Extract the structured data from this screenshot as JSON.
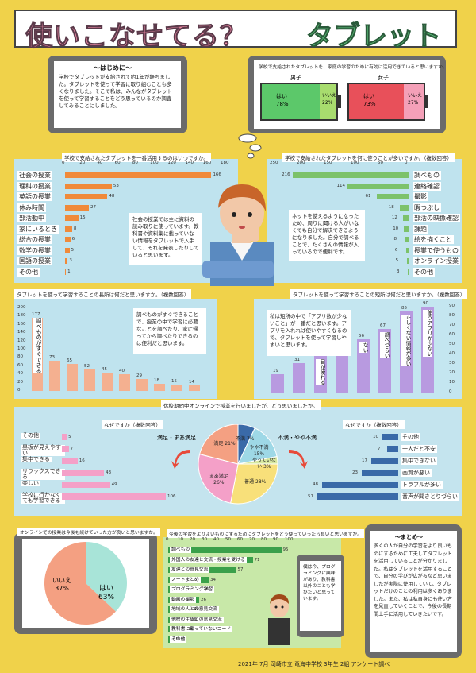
{
  "title": {
    "main": "使いこなせてる？",
    "accent": "タブレット"
  },
  "intro": {
    "heading": "～はじめに～",
    "body": "学校でタブレットが支給されて約1年が経ちました。タブレットを使って学習に取り組むことも多くなりました。そこで私は、みんながタブレットを使って学習することをどう思っているのか調査してみることにしました。"
  },
  "useful": {
    "caption": "学校で支給されたタブレットを、家庭の学習のために有効に活用できていると思いますか。",
    "male": {
      "label": "男子",
      "yes_label": "はい",
      "yes_pct": "78%",
      "no_label": "いいえ",
      "no_pct": "22%",
      "yes": 78,
      "no": 22
    },
    "female": {
      "label": "女子",
      "yes_label": "はい",
      "yes_pct": "73%",
      "no_label": "いいえ",
      "no_pct": "27%",
      "yes": 73,
      "no": 27
    }
  },
  "colors": {
    "male_yes": "#5cc86a",
    "male_no": "#a8dc6e",
    "female_yes": "#e8505a",
    "female_no": "#f4a0b8",
    "orange": "#f08a3a",
    "green": "#7cc26a",
    "purple": "#b89ae0",
    "pink": "#f4a0c8",
    "blue": "#3a6aa8",
    "teal": "#9ed8e6"
  },
  "subjects": {
    "caption": "学校で支給されたタブレットを一番活用するのはいつですか。",
    "axis": [
      "0",
      "20",
      "40",
      "60",
      "80",
      "100",
      "120",
      "140",
      "160",
      "180"
    ],
    "items": [
      {
        "label": "社会の授業",
        "value": 166
      },
      {
        "label": "理科の授業",
        "value": 53
      },
      {
        "label": "英語の授業",
        "value": 48
      },
      {
        "label": "休み時間",
        "value": 27
      },
      {
        "label": "部活動中",
        "value": 15
      },
      {
        "label": "家にいるとき",
        "value": 8
      },
      {
        "label": "総合の授業",
        "value": 6
      },
      {
        "label": "数学の授業",
        "value": 5
      },
      {
        "label": "国語の授業",
        "value": 3
      },
      {
        "label": "その他",
        "value": 1
      }
    ],
    "note": "社会の授業では主に資料の読み取りに使っています。教科書や資料集に載っていない情報をタブレットで入手して、それを発表したりしていると思います。"
  },
  "purposes": {
    "caption": "学校で支給されたタブレットを何に使うことが多いですか。（複数回答）",
    "axis": [
      "250",
      "200",
      "150",
      "100",
      "50",
      "0"
    ],
    "items": [
      {
        "label": "調べもの",
        "value": 216
      },
      {
        "label": "連絡確認",
        "value": 114
      },
      {
        "label": "撮影",
        "value": 61
      },
      {
        "label": "暇つぶし",
        "value": 18
      },
      {
        "label": "部活の映像確認",
        "value": 12
      },
      {
        "label": "課題",
        "value": 10
      },
      {
        "label": "絵を描くこと",
        "value": 8
      },
      {
        "label": "授業で使うもの",
        "value": 6
      },
      {
        "label": "オンライン授業",
        "value": 5
      },
      {
        "label": "その他",
        "value": 3
      }
    ],
    "note": "ネットを使えるようになったため、周りに聞ける人がいなくても自分で解決できるようになりました。自分で調べることで、たくさんの情報が入っているので便利です。"
  },
  "merits": {
    "caption": "タブレットを使って学習することの長所は何だと思いますか。（複数回答）",
    "axis": [
      "0",
      "20",
      "40",
      "60",
      "80",
      "100",
      "120",
      "140",
      "160",
      "180",
      "200"
    ],
    "values": [
      177,
      73,
      65,
      52,
      45,
      40,
      29,
      18,
      15,
      14
    ],
    "first_label": "調べものがすぐできる",
    "note": "調べものがすぐできることで、授業の中で学習に必要なことを調べたり、家に帰ってから調べたりできるのは便利だと思います。"
  },
  "demerits": {
    "caption": "タブレットを使って学習することの短所は何だと思いますか。（複数回答）",
    "axis": [
      "0",
      "10",
      "20",
      "30",
      "40",
      "50",
      "60",
      "70",
      "80",
      "90"
    ],
    "values": [
      19,
      31,
      38,
      42,
      56,
      67,
      85,
      90
    ],
    "labels": [
      "",
      "",
      "目が疲れる",
      "",
      "ない",
      "調べづらい",
      "正しくない情報が多い",
      "使うアプリが少ない"
    ],
    "note": "私は短所の中で「アプリ数が少ないこと」が一番だと思います。アプリを入れれば使いやすくなるので、タブレットを使って学習しやすいと思います。"
  },
  "online": {
    "caption": "休校期間中オンラインで授業を行いましたが、どう思いましたか。",
    "slices": [
      {
        "label": "不満",
        "value": 7,
        "color": "#3a6aa8"
      },
      {
        "label": "やや不満",
        "value": 15,
        "color": "#9ed8e6"
      },
      {
        "label": "やっていない",
        "value": 3,
        "color": "#d8e8a0"
      },
      {
        "label": "普通",
        "value": 28,
        "color": "#f8e07a"
      },
      {
        "label": "まあ満足",
        "value": 26,
        "color": "#f4a0c8"
      },
      {
        "label": "満足",
        "value": 21,
        "color": "#f4a082"
      }
    ],
    "slice_text": [
      "不満 7%",
      "やや不満 15%",
      "やっていない 3%",
      "普通 28%",
      "まあ満足 26%",
      "満足 21%"
    ],
    "group_left": "満足・まあ満足",
    "group_right": "不満・やや不満",
    "why_good_caption": "なぜですか（複数回答）",
    "why_good": [
      {
        "label": "その他",
        "value": 5
      },
      {
        "label": "黒板が見えやすい",
        "value": 7
      },
      {
        "label": "集中できる",
        "value": 16
      },
      {
        "label": "リラックスできる",
        "value": 43
      },
      {
        "label": "楽しい",
        "value": 49
      },
      {
        "label": "学校に行かなくても学習できる",
        "value": 106
      }
    ],
    "why_bad_caption": "なぜですか（複数回答）",
    "why_bad": [
      {
        "label": "その他",
        "value": 10
      },
      {
        "label": "一人だと不安",
        "value": 7
      },
      {
        "label": "集中できない",
        "value": 17
      },
      {
        "label": "画質が悪い",
        "value": 23
      },
      {
        "label": "トラブルが多い",
        "value": 48
      },
      {
        "label": "音声が聞きとりづらい",
        "value": 51
      }
    ]
  },
  "continue": {
    "caption": "オンラインでの授業は今後も続けていった方が良いと思いますか。",
    "yes_label": "はい",
    "yes_pct": "63%",
    "yes": 63,
    "no_label": "いいえ",
    "no_pct": "37%",
    "no": 37
  },
  "future": {
    "caption": "今後の学習をよりよいものにするためにタブレットをどう使っていったら良いと思いますか。",
    "axis": [
      "0",
      "10",
      "20",
      "30",
      "40",
      "50",
      "60",
      "70",
      "80",
      "90",
      "100"
    ],
    "items": [
      {
        "label": "調べもの",
        "value": 95
      },
      {
        "label": "外国人の友達と交流・授業を受ける",
        "value": 71
      },
      {
        "label": "友達との意見交流",
        "value": 57
      },
      {
        "label": "ノートまとめ",
        "value": 34
      },
      {
        "label": "プログラミング学習",
        "value": 28
      },
      {
        "label": "動画の撮影",
        "value": 26
      },
      {
        "label": "地域の人との意見交流",
        "value": 20
      },
      {
        "label": "他校の生徒との意見交流",
        "value": 18
      },
      {
        "label": "教科書に載っていないコード",
        "value": 15
      },
      {
        "label": "その他",
        "value": 5
      }
    ],
    "note": "僕は今、プログラミングに興味があり、教科書以外のことも学びたいと思っています。"
  },
  "summary": {
    "heading": "～まとめ～",
    "body": "多くの人が自分の学習をより良いものにするために工夫してタブレットを活用していることが分かりました。私はタブレットを活用することで、自分の学びが広がるなど思いましたが実際に使用していて、タブレットだけのことの利用は多くありました。また、私は私自身にも使い方を見直していくことで、今後の長期間上手に活用していきたいです。"
  },
  "footer": "2021年 7月 岡崎市立 竜海中学校 3年生 2組 アンケート調べ"
}
